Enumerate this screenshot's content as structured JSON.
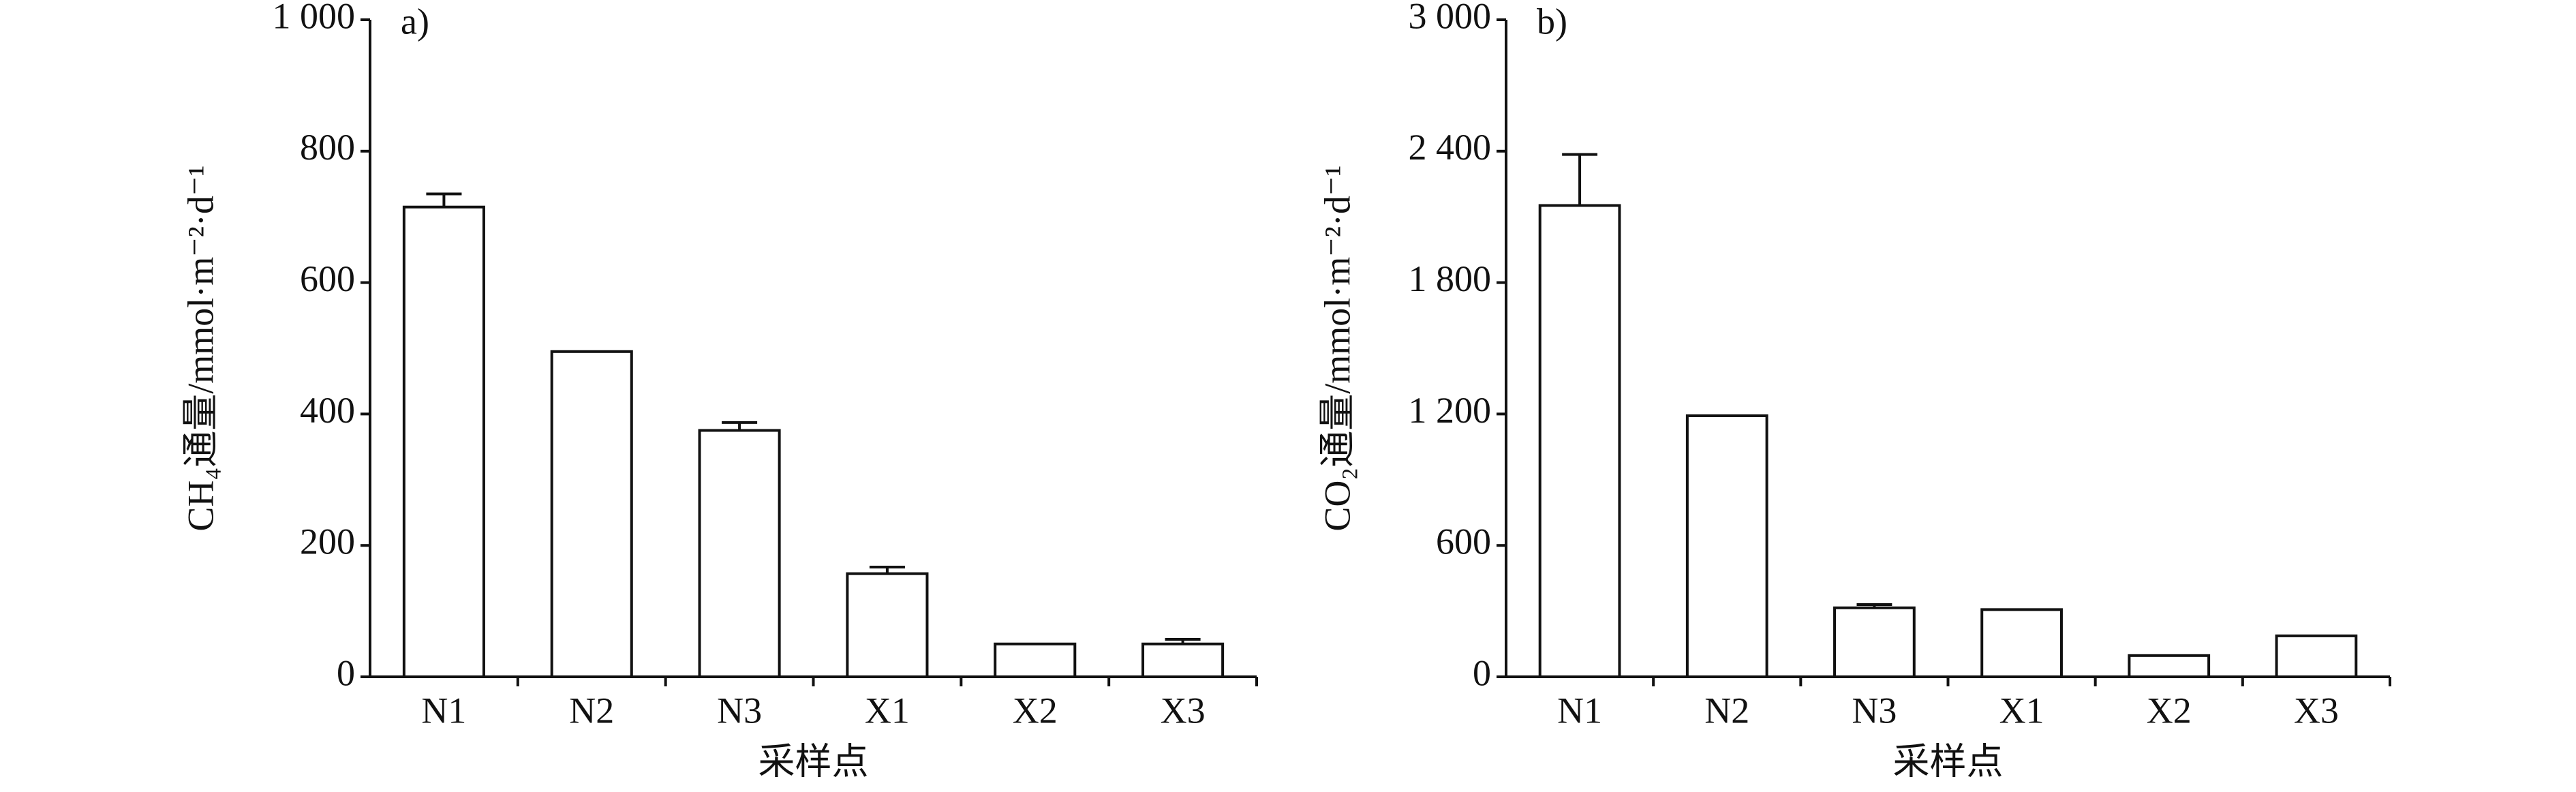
{
  "chart_data": [
    {
      "type": "bar",
      "panel_label": "a)",
      "y_label": "CH₄通量/mmol·m⁻²·d⁻¹",
      "x_label": "采样点",
      "categories": [
        "N1",
        "N2",
        "N3",
        "X1",
        "X2",
        "X3"
      ],
      "values": [
        715,
        495,
        375,
        157,
        50,
        50
      ],
      "errors": [
        20,
        null,
        12,
        10,
        null,
        7
      ],
      "ylim": [
        0,
        1000
      ],
      "yticks": [
        0,
        200,
        400,
        600,
        800,
        {
          "value": 1000,
          "label": "1 000"
        }
      ],
      "color": "#ffffff"
    },
    {
      "type": "bar",
      "panel_label": "b)",
      "y_label": "CO₂通量/mmol·m⁻²·d⁻¹",
      "x_label": "采样点",
      "categories": [
        "N1",
        "N2",
        "N3",
        "X1",
        "X2",
        "X3"
      ],
      "values": [
        2152,
        1192,
        315,
        307,
        97,
        187
      ],
      "errors": [
        233,
        null,
        15,
        null,
        null,
        null
      ],
      "ylim": [
        0,
        3000
      ],
      "yticks": [
        0,
        600,
        {
          "value": 1200,
          "label": "1 200"
        },
        {
          "value": 1800,
          "label": "1 800"
        },
        {
          "value": 2400,
          "label": "2 400"
        },
        {
          "value": 3000,
          "label": "3 000"
        }
      ],
      "color": "#ffffff"
    }
  ]
}
